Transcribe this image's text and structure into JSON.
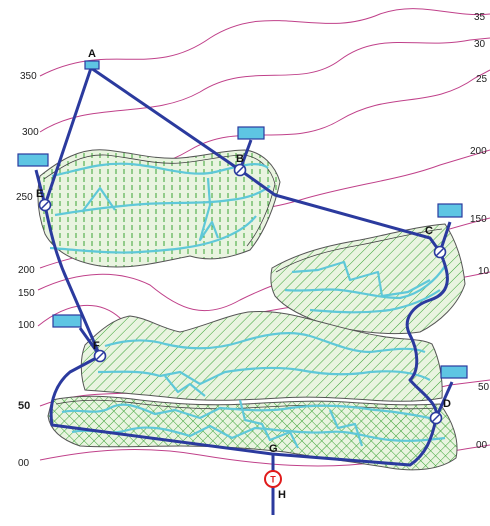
{
  "contour_labels": {
    "c350": "350",
    "c300": "300",
    "c250": "250",
    "c200": "200",
    "c150": "150",
    "c100": "100",
    "c50": "50",
    "c00": "00",
    "r35": "35",
    "r30": "30",
    "r25": "25",
    "r200": "200",
    "r150": "150",
    "r10": "10",
    "r50": "50",
    "r00": "00"
  },
  "nodes": {
    "A": "A",
    "B": "B",
    "C": "C",
    "D": "D",
    "E": "E",
    "F": "F",
    "G": "G",
    "H": "H"
  },
  "pump_symbol": "T",
  "colors": {
    "contour": "#c0418a",
    "pipe": "#2b3a9e",
    "stream": "#5fc8d8",
    "tank": "#5ec5e3",
    "field_hatch": "#3aa335",
    "pump": "#e01b1b"
  }
}
